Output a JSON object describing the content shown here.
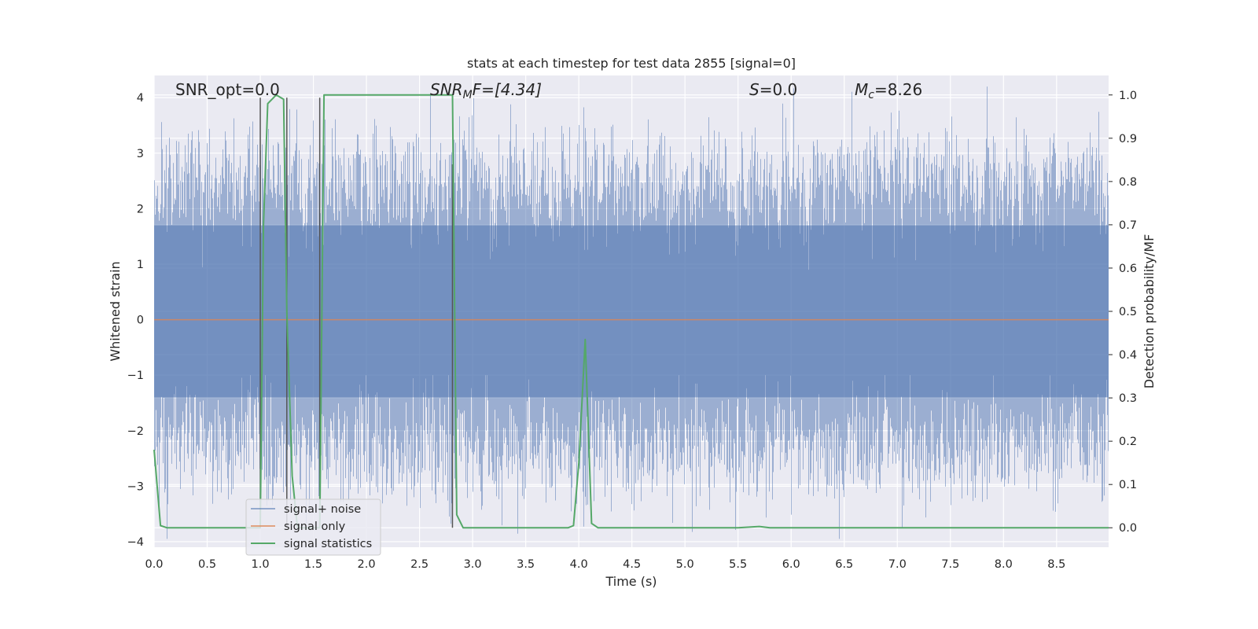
{
  "chart_data": {
    "type": "line",
    "title": "stats at each timestep for test data 2855 [signal=0]",
    "xlabel": "Time (s)",
    "ylabel": "Whitened strain",
    "y2label": "Detection probability/MF",
    "xlim": [
      0.0,
      8.99
    ],
    "ylim": [
      -4.1,
      4.4
    ],
    "y2lim": [
      -0.045,
      1.045
    ],
    "xticks": [
      "0.0",
      "0.5",
      "1.0",
      "1.5",
      "2.0",
      "2.5",
      "3.0",
      "3.5",
      "4.0",
      "4.5",
      "5.0",
      "5.5",
      "6.0",
      "6.5",
      "7.0",
      "7.5",
      "8.0",
      "8.5"
    ],
    "yticks": [
      "4",
      "3",
      "2",
      "1",
      "0",
      "−1",
      "−2",
      "−3",
      "−4"
    ],
    "y2ticks": [
      "1.0",
      "0.9",
      "0.8",
      "0.7",
      "0.6",
      "0.5",
      "0.4",
      "0.3",
      "0.2",
      "0.1",
      "0.0"
    ],
    "grid": true,
    "legend_position": "lower-left",
    "annotations": {
      "snr_opt": "SNR_opt=0.0",
      "snr_mf_prefix": "SNR",
      "snr_mf_sub": "M",
      "snr_mf_suffix": "F=[4.34]",
      "s_var": "S",
      "s_value": "=0.0",
      "mc_var": "M",
      "mc_sub": "c",
      "mc_value": "=8.26"
    },
    "series": [
      {
        "name": "signal+ noise",
        "color": "#4c72b0",
        "description_envelope": {
          "typical_min": -2.5,
          "typical_max": 2.6,
          "core_min": -1.4,
          "core_max": 1.7
        }
      },
      {
        "name": "signal only",
        "color": "#dd8452",
        "x": [
          0.0,
          8.99
        ],
        "y": [
          0.0,
          0.0
        ]
      },
      {
        "name": "signal statistics",
        "color": "#55a868",
        "axis": "right",
        "x": [
          0.0,
          0.06,
          0.12,
          0.3,
          0.6,
          0.9,
          1.0,
          1.03,
          1.07,
          1.15,
          1.22,
          1.25,
          1.3,
          1.35,
          1.45,
          1.56,
          1.6,
          1.65,
          1.8,
          2.0,
          2.4,
          2.7,
          2.81,
          2.85,
          2.91,
          3.0,
          3.3,
          3.6,
          3.9,
          3.95,
          4.0,
          4.06,
          4.12,
          4.18,
          4.3,
          5.0,
          5.5,
          5.7,
          5.8,
          6.5,
          7.5,
          8.5,
          8.99
        ],
        "y": [
          0.18,
          0.005,
          0.0,
          0.0,
          0.0,
          0.0,
          0.0,
          0.7,
          0.98,
          1.0,
          0.99,
          0.5,
          0.12,
          0.0,
          0.0,
          0.0,
          1.0,
          1.0,
          1.0,
          1.0,
          1.0,
          1.0,
          1.0,
          0.03,
          0.0,
          0.0,
          0.0,
          0.0,
          0.0,
          0.005,
          0.15,
          0.435,
          0.01,
          0.0,
          0.0,
          0.0,
          0.0,
          0.003,
          0.0,
          0.0,
          0.0,
          0.0,
          0.0
        ]
      }
    ],
    "markers": {
      "color": "#555555",
      "x": [
        1.0,
        1.25,
        1.56,
        2.81
      ],
      "y_top": [
        4.0,
        4.0,
        4.0,
        2.8
      ],
      "y_bottom": [
        -3.75,
        -3.75,
        -3.75,
        -3.75
      ]
    }
  }
}
